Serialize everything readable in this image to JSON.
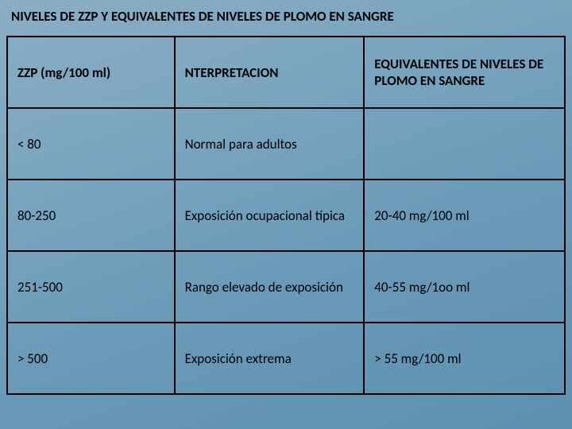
{
  "title": "NIVELES DE ZZP Y EQUIVALENTES DE NIVELES DE PLOMO EN SANGRE",
  "header": {
    "c1": "ZZP (mg/100 ml)",
    "c2": "NTERPRETACION",
    "c3": "EQUIVALENTES DE NIVELES DE PLOMO EN SANGRE"
  },
  "rows": [
    {
      "c1": "< 80",
      "c2": "Normal para adultos",
      "c3": ""
    },
    {
      "c1": "80-250",
      "c2": "Exposición ocupacional típica",
      "c3": "20-40 mg/100 ml"
    },
    {
      "c1": "251-500",
      "c2": "Rango elevado de exposición",
      "c3": "40-55 mg/1oo ml"
    },
    {
      "c1": "> 500",
      "c2": "Exposición extrema",
      "c3": "> 55 mg/100 ml"
    }
  ]
}
